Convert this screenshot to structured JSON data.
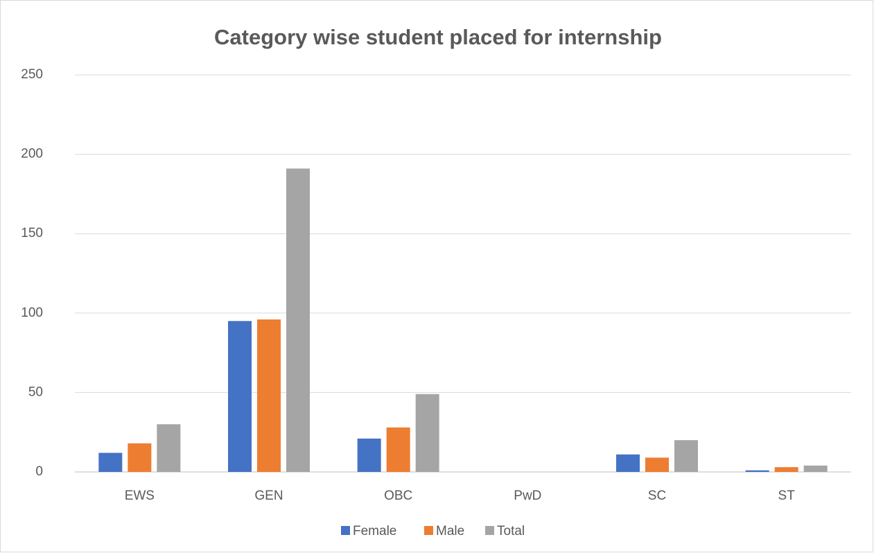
{
  "chart_data": {
    "type": "bar",
    "title": "Category wise student placed for internship",
    "categories": [
      "EWS",
      "GEN",
      "OBC",
      "PwD",
      "SC",
      "ST"
    ],
    "series": [
      {
        "name": "Female",
        "color": "#4472c4",
        "values": [
          12,
          95,
          21,
          0,
          11,
          1
        ]
      },
      {
        "name": "Male",
        "color": "#ed7d31",
        "values": [
          18,
          96,
          28,
          0,
          9,
          3
        ]
      },
      {
        "name": "Total",
        "color": "#a5a5a5",
        "values": [
          30,
          191,
          49,
          0,
          20,
          4
        ]
      }
    ],
    "ylim": [
      0,
      250
    ],
    "yticks": [
      0,
      50,
      100,
      150,
      200,
      250
    ],
    "grid": true,
    "legend": "bottom"
  }
}
